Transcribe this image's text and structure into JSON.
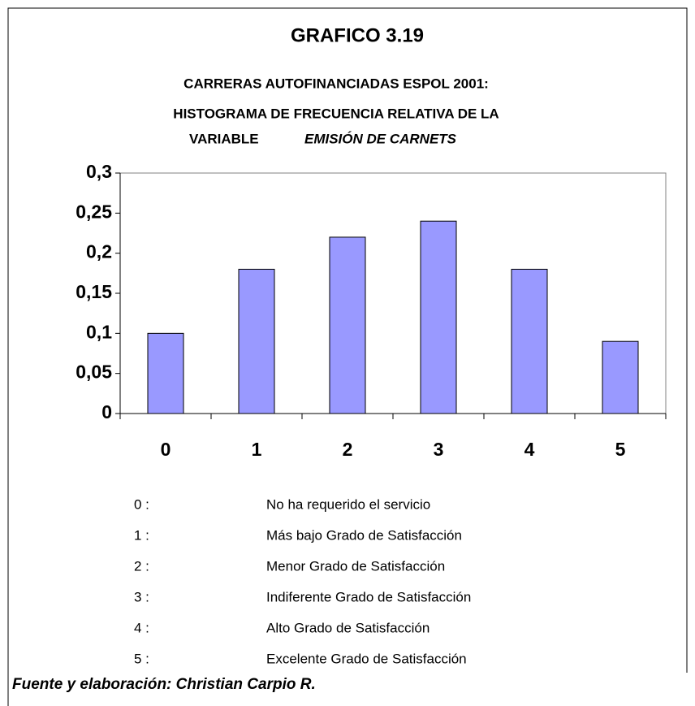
{
  "chart_data": {
    "type": "bar",
    "title": "GRAFICO 3.19",
    "subtitle": [
      "CARRERAS AUTOFINANCIADAS ESPOL 2001:",
      "HISTOGRAMA DE FRECUENCIA RELATIVA DE LA"
    ],
    "subtitle_last": [
      "VARIABLE",
      "EMISIÓN DE CARNETS"
    ],
    "categories": [
      "0",
      "1",
      "2",
      "3",
      "4",
      "5"
    ],
    "values": [
      0.1,
      0.18,
      0.22,
      0.24,
      0.18,
      0.09
    ],
    "color": "#9999ff",
    "ylim": [
      0,
      0.3
    ],
    "yticks": [
      0,
      {
        "value": 0.05,
        "label": "0,05"
      },
      {
        "value": 0.1,
        "label": "0,1"
      },
      {
        "value": 0.15,
        "label": "0,15"
      },
      {
        "value": 0.2,
        "label": "0,2"
      },
      {
        "value": 0.25,
        "label": "0,25"
      },
      {
        "value": 0.3,
        "label": "0,3"
      }
    ],
    "legend": [
      {
        "code": "0 :",
        "text": "No ha requerido el servicio"
      },
      {
        "code": "1 :",
        "text": "Más bajo Grado de Satisfacción"
      },
      {
        "code": "2 :",
        "text": "Menor Grado de Satisfacción"
      },
      {
        "code": "3 :",
        "text": "Indiferente Grado de Satisfacción"
      },
      {
        "code": "4 :",
        "text": "Alto Grado de Satisfacción"
      },
      {
        "code": "5 :",
        "text": "Excelente Grado de Satisfacción"
      }
    ],
    "source": "Fuente y elaboración: Christian Carpio R."
  }
}
